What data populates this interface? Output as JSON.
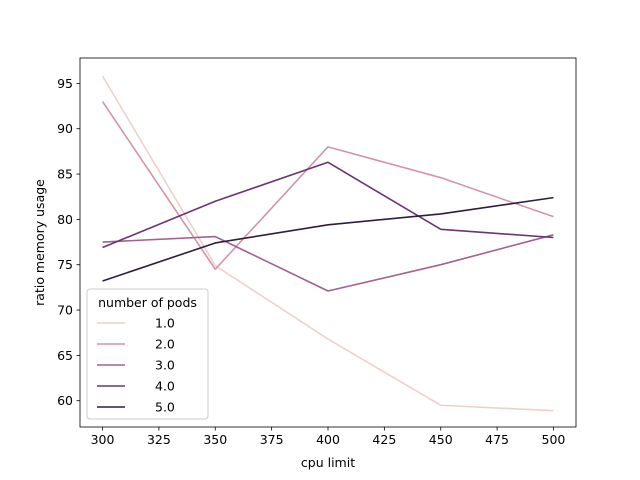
{
  "chart_data": {
    "type": "line",
    "title": "",
    "xlabel": "cpu limit",
    "ylabel": "ratio memory usage",
    "xlim": [
      290,
      510
    ],
    "ylim": [
      57.1,
      97.8
    ],
    "x_ticks": [
      300,
      325,
      350,
      375,
      400,
      425,
      450,
      475,
      500
    ],
    "y_ticks": [
      60,
      65,
      70,
      75,
      80,
      85,
      90,
      95
    ],
    "grid": false,
    "legend": {
      "title": "number of pods",
      "placement": "lower-left"
    },
    "x": [
      300,
      350,
      400,
      450,
      500
    ],
    "series": [
      {
        "name": "1.0",
        "color": "#edd1cb",
        "values": [
          95.8,
          74.9,
          66.8,
          59.5,
          58.9
        ]
      },
      {
        "name": "2.0",
        "color": "#d295a8",
        "values": [
          93.0,
          74.5,
          88.0,
          84.6,
          80.3
        ]
      },
      {
        "name": "3.0",
        "color": "#a3618e",
        "values": [
          77.5,
          78.1,
          72.1,
          75.0,
          78.3
        ]
      },
      {
        "name": "4.0",
        "color": "#6a3670",
        "values": [
          76.9,
          82.0,
          86.3,
          78.9,
          78.0
        ]
      },
      {
        "name": "5.0",
        "color": "#2d1e3e",
        "values": [
          73.2,
          77.4,
          79.4,
          80.6,
          82.4
        ]
      }
    ]
  }
}
